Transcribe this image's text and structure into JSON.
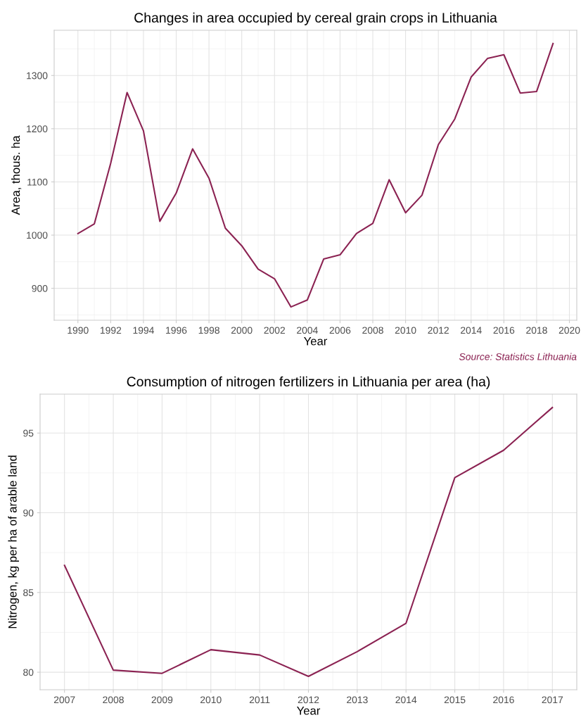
{
  "chart_data": [
    {
      "type": "line",
      "title": "Changes in area occupied by cereal grain crops in Lithuania",
      "xlabel": "Year",
      "ylabel": "Area, thous. ha",
      "x": [
        1990,
        1991,
        1992,
        1993,
        1994,
        1995,
        1996,
        1997,
        1998,
        1999,
        2000,
        2001,
        2002,
        2003,
        2004,
        2005,
        2006,
        2007,
        2008,
        2009,
        2010,
        2011,
        2012,
        2013,
        2014,
        2015,
        2016,
        2017,
        2018,
        2019
      ],
      "series": [
        {
          "color": "#8b2252",
          "values": [
            1003,
            1021,
            1135,
            1268,
            1196,
            1026,
            1079,
            1162,
            1107,
            1013,
            980,
            936,
            918,
            865,
            878,
            955,
            963,
            1003,
            1022,
            1104,
            1042,
            1075,
            1170,
            1218,
            1297,
            1332,
            1339,
            1267,
            1270,
            1360
          ]
        }
      ],
      "xlim": [
        1988.55,
        2020.45
      ],
      "xticks": [
        1990,
        1992,
        1994,
        1996,
        1998,
        2000,
        2002,
        2004,
        2006,
        2008,
        2010,
        2012,
        2014,
        2016,
        2018,
        2020
      ],
      "ylim": [
        840,
        1385
      ],
      "yticks": [
        900,
        1000,
        1100,
        1200,
        1300
      ],
      "grid": true,
      "line_style": "solid",
      "annotations": [
        "Source: Statistics Lithuania"
      ]
    },
    {
      "type": "line",
      "title": "Consumption of nitrogen fertilizers in Lithuania per area (ha)",
      "xlabel": "Year",
      "ylabel": "Nitrogen, kg per ha of arable land",
      "x": [
        2007,
        2008,
        2009,
        2010,
        2011,
        2012,
        2013,
        2014,
        2015,
        2016,
        2017
      ],
      "series": [
        {
          "color": "#8b2252",
          "values": [
            86.7,
            80.13,
            79.93,
            81.41,
            81.08,
            79.74,
            81.29,
            83.07,
            92.2,
            93.92,
            96.6
          ]
        }
      ],
      "xlim": [
        2006.5,
        2017.5
      ],
      "xticks": [
        2007,
        2008,
        2009,
        2010,
        2011,
        2012,
        2013,
        2014,
        2015,
        2016,
        2017
      ],
      "ylim": [
        78.9,
        97.44
      ],
      "yticks": [
        80,
        85,
        90,
        95
      ],
      "grid": true,
      "line_style": "solid"
    }
  ]
}
